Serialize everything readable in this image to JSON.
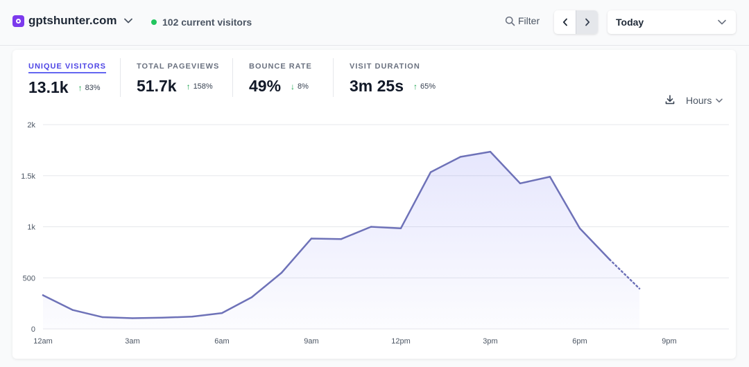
{
  "header": {
    "site_name": "gptshunter.com",
    "current_visitors": "102 current visitors",
    "filter_label": "Filter",
    "period_label": "Today",
    "icons": {
      "favicon": "site-favicon-icon",
      "site_menu": "chevron-down-icon",
      "filter": "search-icon",
      "prev": "chevron-left-icon",
      "next": "chevron-right-icon",
      "period_menu": "chevron-down-icon"
    },
    "colors": {
      "live_dot": "#22c55e",
      "favicon": "#7c3aed"
    }
  },
  "metrics": [
    {
      "label": "UNIQUE VISITORS",
      "value": "13.1k",
      "change": "83%",
      "direction": "up",
      "active": true
    },
    {
      "label": "TOTAL PAGEVIEWS",
      "value": "51.7k",
      "change": "158%",
      "direction": "up"
    },
    {
      "label": "BOUNCE RATE",
      "value": "49%",
      "change": "8%",
      "direction": "down"
    },
    {
      "label": "VISIT DURATION",
      "value": "3m 25s",
      "change": "65%",
      "direction": "up"
    }
  ],
  "controls": {
    "interval_label": "Hours",
    "download_icon": "download-icon",
    "interval_icon": "chevron-down-icon"
  },
  "chart_data": {
    "type": "line",
    "x": [
      "12am",
      "1am",
      "2am",
      "3am",
      "4am",
      "5am",
      "6am",
      "7am",
      "8am",
      "9am",
      "10am",
      "11am",
      "12pm",
      "1pm",
      "2pm",
      "3pm",
      "4pm",
      "5pm",
      "6pm",
      "7pm",
      "8pm"
    ],
    "series": [
      {
        "values": [
          330,
          185,
          115,
          105,
          110,
          120,
          155,
          310,
          550,
          885,
          880,
          1000,
          985,
          1535,
          1685,
          1735,
          1425,
          1490,
          985,
          680,
          395
        ]
      }
    ],
    "incomplete_from_index": 19,
    "x_tick_labels": [
      "12am",
      "3am",
      "6am",
      "9am",
      "12pm",
      "3pm",
      "6pm",
      "9pm"
    ],
    "x_tick_indices": [
      0,
      3,
      6,
      9,
      12,
      15,
      18,
      21
    ],
    "y_ticks": [
      0,
      500,
      1000,
      1500,
      2000
    ],
    "y_tick_labels": [
      "0",
      "500",
      "1k",
      "1.5k",
      "2k"
    ],
    "ylim": [
      0,
      2000
    ],
    "x_range": [
      0,
      23
    ],
    "grid": true,
    "line_color": "#6e72b8",
    "fill_color": "#6366f1"
  }
}
